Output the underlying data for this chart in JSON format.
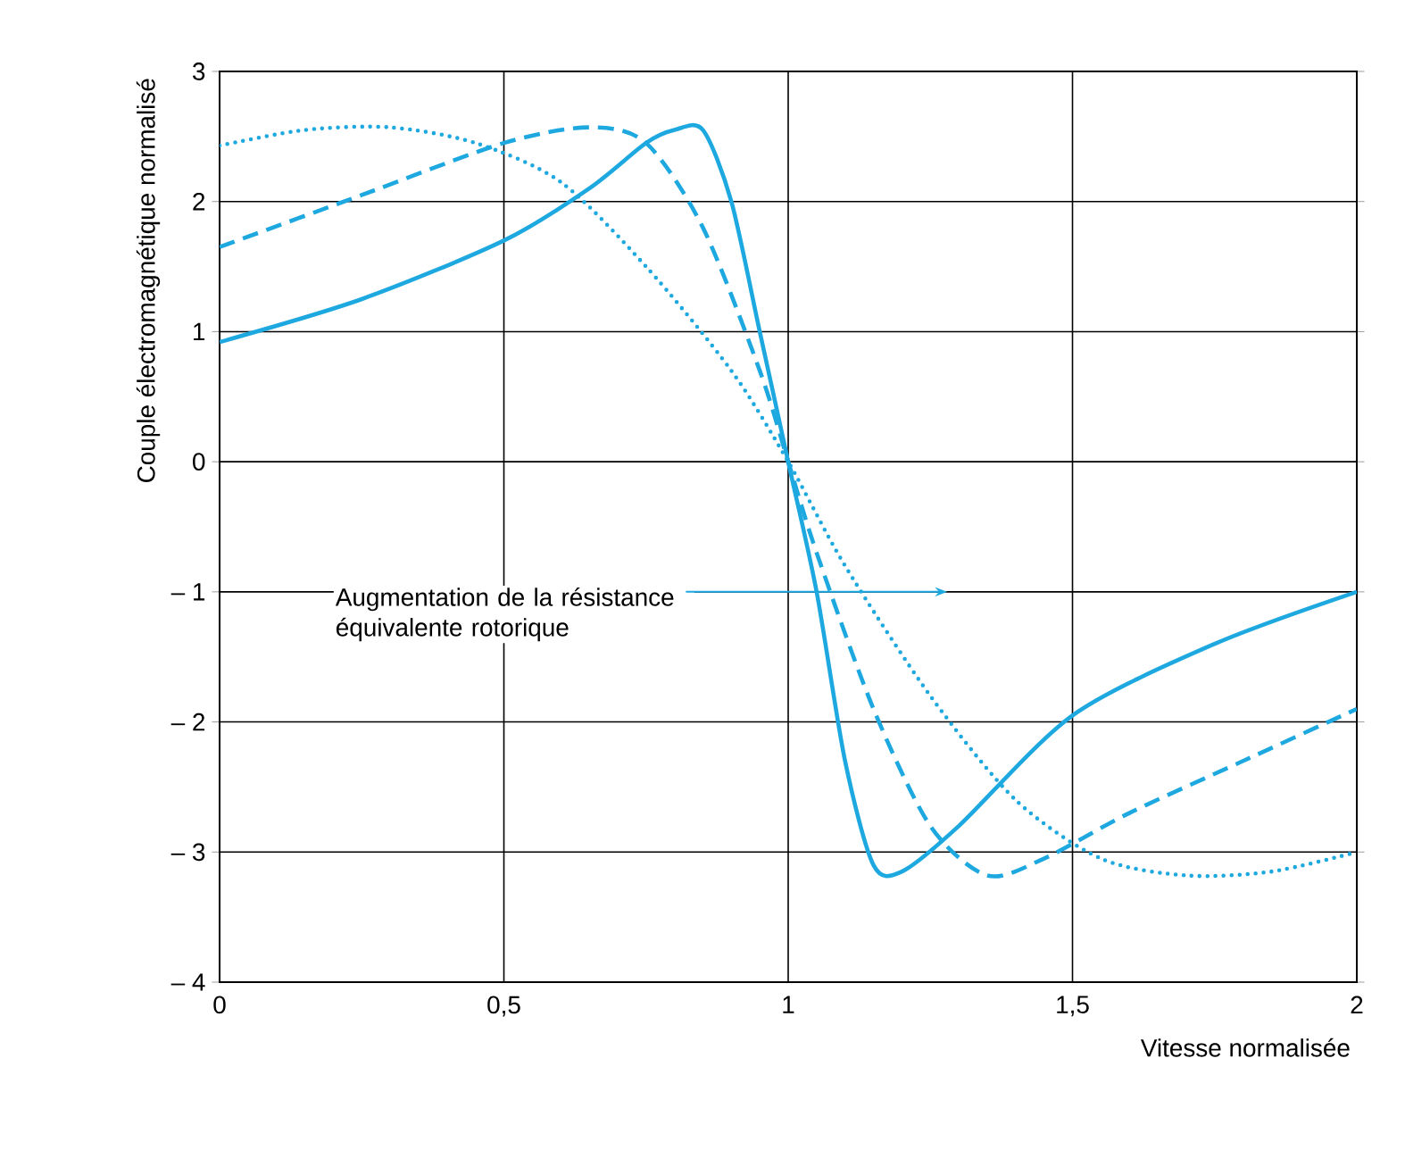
{
  "chart_data": {
    "type": "line",
    "xlabel": "Vitesse normalisée",
    "ylabel": "Couple électromagnétique normalisé",
    "xlim": [
      0,
      2
    ],
    "ylim": [
      -4,
      3
    ],
    "xticks": [
      0,
      {
        "value": 0.5,
        "label": "0,5"
      },
      1,
      {
        "value": 1.5,
        "label": "1,5"
      },
      2
    ],
    "yticks": [
      {
        "value": -4,
        "label": "– 4"
      },
      {
        "value": -3,
        "label": "– 3"
      },
      {
        "value": -2,
        "label": "– 2"
      },
      {
        "value": -1,
        "label": "– 1"
      },
      0,
      1,
      2,
      3
    ],
    "grid": true,
    "marker": "none",
    "annotations": [
      "Augmentation de la résistance équivalente rotorique"
    ],
    "series": [
      {
        "color": "#1ea8e0",
        "line_style": "solid",
        "x": [
          0,
          0.25,
          0.5,
          0.65,
          0.75,
          0.8,
          0.85,
          0.9,
          0.95,
          1.0,
          1.05,
          1.1,
          1.15,
          1.2,
          1.3,
          1.5,
          1.75,
          2
        ],
        "values": [
          0.92,
          1.25,
          1.7,
          2.1,
          2.45,
          2.55,
          2.55,
          2.0,
          1.0,
          0,
          -1.0,
          -2.3,
          -3.1,
          -3.15,
          -2.8,
          -1.95,
          -1.4,
          -1.0
        ]
      },
      {
        "color": "#1ea8e0",
        "line_style": "dashed",
        "x": [
          0,
          0.25,
          0.5,
          0.65,
          0.75,
          0.85,
          0.95,
          1,
          1.05,
          1.15,
          1.25,
          1.35,
          1.45,
          1.6,
          1.8,
          2
        ],
        "values": [
          1.65,
          2.05,
          2.45,
          2.57,
          2.45,
          1.8,
          0.7,
          0,
          -0.7,
          -1.9,
          -2.8,
          -3.18,
          -3.05,
          -2.7,
          -2.3,
          -1.9
        ]
      },
      {
        "color": "#1ea8e0",
        "line_style": "dotted",
        "x": [
          0,
          0.15,
          0.3,
          0.45,
          0.6,
          0.75,
          0.9,
          1,
          1.1,
          1.25,
          1.4,
          1.55,
          1.7,
          1.85,
          2
        ],
        "values": [
          2.43,
          2.55,
          2.57,
          2.45,
          2.15,
          1.5,
          0.7,
          0,
          -0.8,
          -1.8,
          -2.6,
          -3.05,
          -3.18,
          -3.15,
          -3.0
        ]
      }
    ]
  }
}
